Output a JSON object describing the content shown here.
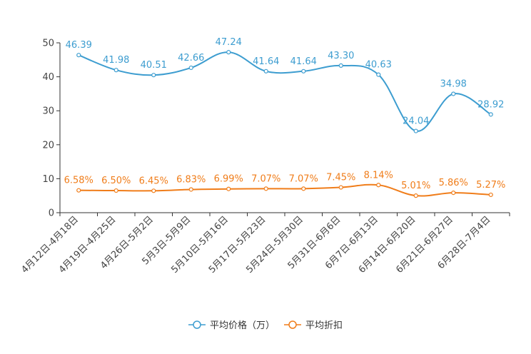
{
  "chart_data": {
    "type": "line",
    "categories": [
      "4月12日-4月18日",
      "4月19日-4月25日",
      "4月26日-5月2日",
      "5月3日-5月9日",
      "5月10日-5月16日",
      "5月17日-5月23日",
      "5月24日-5月30日",
      "5月31日-6月6日",
      "6月7日-6月13日",
      "6月14日-6月20日",
      "6月21日-6月27日",
      "6月28日-7月4日"
    ],
    "y_ticks": [
      0,
      10,
      20,
      30,
      40,
      50
    ],
    "ylim": [
      0,
      50
    ],
    "series": [
      {
        "name": "平均价格（万）",
        "color": "#3d9dd0",
        "values": [
          46.39,
          41.98,
          40.51,
          42.66,
          47.24,
          41.64,
          41.64,
          43.3,
          40.63,
          24.04,
          34.98,
          28.92
        ],
        "labels": [
          "46.39",
          "41.98",
          "40.51",
          "42.66",
          "47.24",
          "41.64",
          "41.64",
          "43.30",
          "40.63",
          "24.04",
          "34.98",
          "28.92"
        ]
      },
      {
        "name": "平均折扣",
        "color": "#f07d1a",
        "values": [
          6.58,
          6.5,
          6.45,
          6.83,
          6.99,
          7.07,
          7.07,
          7.45,
          8.14,
          5.01,
          5.86,
          5.27
        ],
        "labels": [
          "6.58%",
          "6.50%",
          "6.45%",
          "6.83%",
          "6.99%",
          "7.07%",
          "7.07%",
          "7.45%",
          "8.14%",
          "5.01%",
          "5.86%",
          "5.27%"
        ]
      }
    ]
  }
}
